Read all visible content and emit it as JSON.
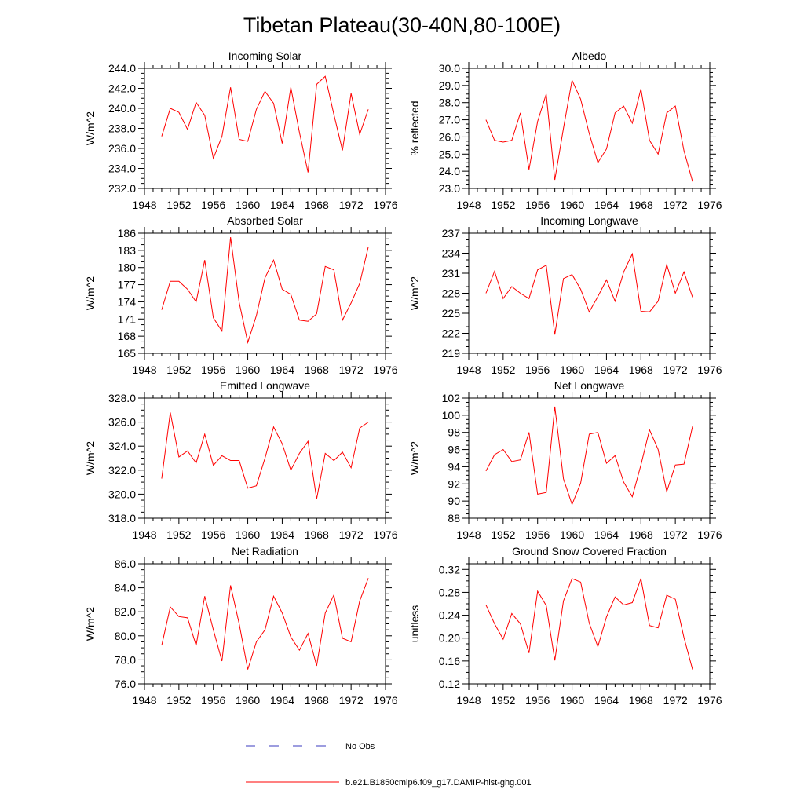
{
  "figure_title": "Tibetan Plateau(30-40N,80-100E)",
  "colors": {
    "model_line": "#ff0000",
    "obs_line": "#3b3bbf",
    "axes": "#000000"
  },
  "legend": {
    "obs_label": "No Obs",
    "model_label": "b.e21.B1850cmip6.f09_g17.DAMIP-hist-ghg.001"
  },
  "chart_data": [
    {
      "type": "line",
      "title": "Incoming Solar",
      "ylabel": "W/m^2",
      "xlim": [
        1948,
        1976
      ],
      "xticks": [
        1948,
        1952,
        1956,
        1960,
        1964,
        1968,
        1972,
        1976
      ],
      "ylim": [
        232,
        244
      ],
      "yticks": [
        232,
        234,
        236,
        238,
        240,
        242,
        244
      ],
      "ytick_decimals": 1,
      "x": [
        1950,
        1951,
        1952,
        1953,
        1954,
        1955,
        1956,
        1957,
        1958,
        1959,
        1960,
        1961,
        1962,
        1963,
        1964,
        1965,
        1966,
        1967,
        1968,
        1969,
        1970,
        1971,
        1972,
        1973,
        1974
      ],
      "series": [
        {
          "name": "b.e21.B1850cmip6.f09_g17.DAMIP-hist-ghg.001",
          "values": [
            237.2,
            240.0,
            239.6,
            237.9,
            240.6,
            239.3,
            235.0,
            237.2,
            242.1,
            236.9,
            236.7,
            239.9,
            241.7,
            240.5,
            236.5,
            242.1,
            237.6,
            233.6,
            242.4,
            243.2,
            239.4,
            235.8,
            241.5,
            237.4,
            239.9
          ]
        }
      ]
    },
    {
      "type": "line",
      "title": "Albedo",
      "ylabel": "% reflected",
      "xlim": [
        1948,
        1976
      ],
      "xticks": [
        1948,
        1952,
        1956,
        1960,
        1964,
        1968,
        1972,
        1976
      ],
      "ylim": [
        23,
        30
      ],
      "yticks": [
        23,
        24,
        25,
        26,
        27,
        28,
        29,
        30
      ],
      "ytick_decimals": 1,
      "x": [
        1950,
        1951,
        1952,
        1953,
        1954,
        1955,
        1956,
        1957,
        1958,
        1959,
        1960,
        1961,
        1962,
        1963,
        1964,
        1965,
        1966,
        1967,
        1968,
        1969,
        1970,
        1971,
        1972,
        1973,
        1974
      ],
      "series": [
        {
          "name": "b.e21.B1850cmip6.f09_g17.DAMIP-hist-ghg.001",
          "values": [
            27.0,
            25.8,
            25.7,
            25.8,
            27.4,
            24.1,
            26.9,
            28.5,
            23.5,
            26.5,
            29.3,
            28.2,
            26.2,
            24.5,
            25.3,
            27.4,
            27.8,
            26.8,
            28.8,
            25.8,
            25.0,
            27.4,
            27.8,
            25.2,
            23.4
          ]
        }
      ]
    },
    {
      "type": "line",
      "title": "Absorbed Solar",
      "ylabel": "W/m^2",
      "xlim": [
        1948,
        1976
      ],
      "xticks": [
        1948,
        1952,
        1956,
        1960,
        1964,
        1968,
        1972,
        1976
      ],
      "ylim": [
        165,
        186
      ],
      "yticks": [
        165,
        168,
        171,
        174,
        177,
        180,
        183,
        186
      ],
      "ytick_decimals": 0,
      "x": [
        1950,
        1951,
        1952,
        1953,
        1954,
        1955,
        1956,
        1957,
        1958,
        1959,
        1960,
        1961,
        1962,
        1963,
        1964,
        1965,
        1966,
        1967,
        1968,
        1969,
        1970,
        1971,
        1972,
        1973,
        1974
      ],
      "series": [
        {
          "name": "b.e21.B1850cmip6.f09_g17.DAMIP-hist-ghg.001",
          "values": [
            172.6,
            177.6,
            177.6,
            176.2,
            174.0,
            181.3,
            171.2,
            168.9,
            185.3,
            173.9,
            166.9,
            171.6,
            178.2,
            181.3,
            176.2,
            175.3,
            170.8,
            170.6,
            171.9,
            180.2,
            179.6,
            170.8,
            173.8,
            177.2,
            183.6
          ]
        }
      ]
    },
    {
      "type": "line",
      "title": "Incoming Longwave",
      "ylabel": "W/m^2",
      "xlim": [
        1948,
        1976
      ],
      "xticks": [
        1948,
        1952,
        1956,
        1960,
        1964,
        1968,
        1972,
        1976
      ],
      "ylim": [
        219,
        237
      ],
      "yticks": [
        219,
        222,
        225,
        228,
        231,
        234,
        237
      ],
      "ytick_decimals": 0,
      "x": [
        1950,
        1951,
        1952,
        1953,
        1954,
        1955,
        1956,
        1957,
        1958,
        1959,
        1960,
        1961,
        1962,
        1963,
        1964,
        1965,
        1966,
        1967,
        1968,
        1969,
        1970,
        1971,
        1972,
        1973,
        1974
      ],
      "series": [
        {
          "name": "b.e21.B1850cmip6.f09_g17.DAMIP-hist-ghg.001",
          "values": [
            228.0,
            231.3,
            227.2,
            229.0,
            228.0,
            227.2,
            231.5,
            232.2,
            221.8,
            230.2,
            230.8,
            228.6,
            225.2,
            227.5,
            230.0,
            226.8,
            231.2,
            233.9,
            225.3,
            225.2,
            226.8,
            232.3,
            228.0,
            231.2,
            227.4
          ]
        }
      ]
    },
    {
      "type": "line",
      "title": "Emitted Longwave",
      "ylabel": "W/m^2",
      "xlim": [
        1948,
        1976
      ],
      "xticks": [
        1948,
        1952,
        1956,
        1960,
        1964,
        1968,
        1972,
        1976
      ],
      "ylim": [
        318,
        328
      ],
      "yticks": [
        318,
        320,
        322,
        324,
        326,
        328
      ],
      "ytick_decimals": 1,
      "x": [
        1950,
        1951,
        1952,
        1953,
        1954,
        1955,
        1956,
        1957,
        1958,
        1959,
        1960,
        1961,
        1962,
        1963,
        1964,
        1965,
        1966,
        1967,
        1968,
        1969,
        1970,
        1971,
        1972,
        1973,
        1974
      ],
      "series": [
        {
          "name": "b.e21.B1850cmip6.f09_g17.DAMIP-hist-ghg.001",
          "values": [
            321.3,
            326.8,
            323.1,
            323.6,
            322.6,
            325.0,
            322.4,
            323.2,
            322.8,
            322.8,
            320.5,
            320.7,
            323.0,
            325.6,
            324.2,
            322.0,
            323.4,
            324.4,
            319.6,
            323.4,
            322.8,
            323.5,
            322.2,
            325.5,
            326.0
          ]
        }
      ]
    },
    {
      "type": "line",
      "title": "Net Longwave",
      "ylabel": "W/m^2",
      "xlim": [
        1948,
        1976
      ],
      "xticks": [
        1948,
        1952,
        1956,
        1960,
        1964,
        1968,
        1972,
        1976
      ],
      "ylim": [
        88,
        102
      ],
      "yticks": [
        88,
        90,
        92,
        94,
        96,
        98,
        100,
        102
      ],
      "ytick_decimals": 0,
      "x": [
        1950,
        1951,
        1952,
        1953,
        1954,
        1955,
        1956,
        1957,
        1958,
        1959,
        1960,
        1961,
        1962,
        1963,
        1964,
        1965,
        1966,
        1967,
        1968,
        1969,
        1970,
        1971,
        1972,
        1973,
        1974
      ],
      "series": [
        {
          "name": "b.e21.B1850cmip6.f09_g17.DAMIP-hist-ghg.001",
          "values": [
            93.5,
            95.4,
            96.0,
            94.6,
            94.8,
            98.0,
            90.8,
            91.0,
            101.0,
            92.6,
            89.6,
            92.1,
            97.8,
            98.0,
            94.4,
            95.3,
            92.2,
            90.5,
            94.2,
            98.3,
            96.0,
            91.1,
            94.2,
            94.3,
            98.7
          ]
        }
      ]
    },
    {
      "type": "line",
      "title": "Net Radiation",
      "ylabel": "W/m^2",
      "xlim": [
        1948,
        1976
      ],
      "xticks": [
        1948,
        1952,
        1956,
        1960,
        1964,
        1968,
        1972,
        1976
      ],
      "ylim": [
        76,
        86
      ],
      "yticks": [
        76,
        78,
        80,
        82,
        84,
        86
      ],
      "ytick_decimals": 1,
      "x": [
        1950,
        1951,
        1952,
        1953,
        1954,
        1955,
        1956,
        1957,
        1958,
        1959,
        1960,
        1961,
        1962,
        1963,
        1964,
        1965,
        1966,
        1967,
        1968,
        1969,
        1970,
        1971,
        1972,
        1973,
        1974
      ],
      "series": [
        {
          "name": "b.e21.B1850cmip6.f09_g17.DAMIP-hist-ghg.001",
          "values": [
            79.2,
            82.4,
            81.6,
            81.5,
            79.2,
            83.3,
            80.5,
            77.9,
            84.2,
            81.0,
            77.2,
            79.5,
            80.5,
            83.3,
            81.9,
            79.9,
            78.8,
            80.2,
            77.5,
            81.9,
            83.4,
            79.8,
            79.5,
            82.9,
            84.8
          ]
        }
      ]
    },
    {
      "type": "line",
      "title": "Ground Snow Covered Fraction",
      "ylabel": "unitless",
      "xlim": [
        1948,
        1976
      ],
      "xticks": [
        1948,
        1952,
        1956,
        1960,
        1964,
        1968,
        1972,
        1976
      ],
      "ylim": [
        0.12,
        0.33
      ],
      "yticks": [
        0.12,
        0.16,
        0.2,
        0.24,
        0.28,
        0.32
      ],
      "ytick_decimals": 2,
      "x": [
        1950,
        1951,
        1952,
        1953,
        1954,
        1955,
        1956,
        1957,
        1958,
        1959,
        1960,
        1961,
        1962,
        1963,
        1964,
        1965,
        1966,
        1967,
        1968,
        1969,
        1970,
        1971,
        1972,
        1973,
        1974
      ],
      "series": [
        {
          "name": "b.e21.B1850cmip6.f09_g17.DAMIP-hist-ghg.001",
          "values": [
            0.258,
            0.225,
            0.198,
            0.243,
            0.225,
            0.174,
            0.282,
            0.257,
            0.161,
            0.265,
            0.304,
            0.298,
            0.226,
            0.185,
            0.237,
            0.272,
            0.258,
            0.262,
            0.304,
            0.222,
            0.218,
            0.275,
            0.268,
            0.201,
            0.145
          ]
        }
      ]
    }
  ]
}
